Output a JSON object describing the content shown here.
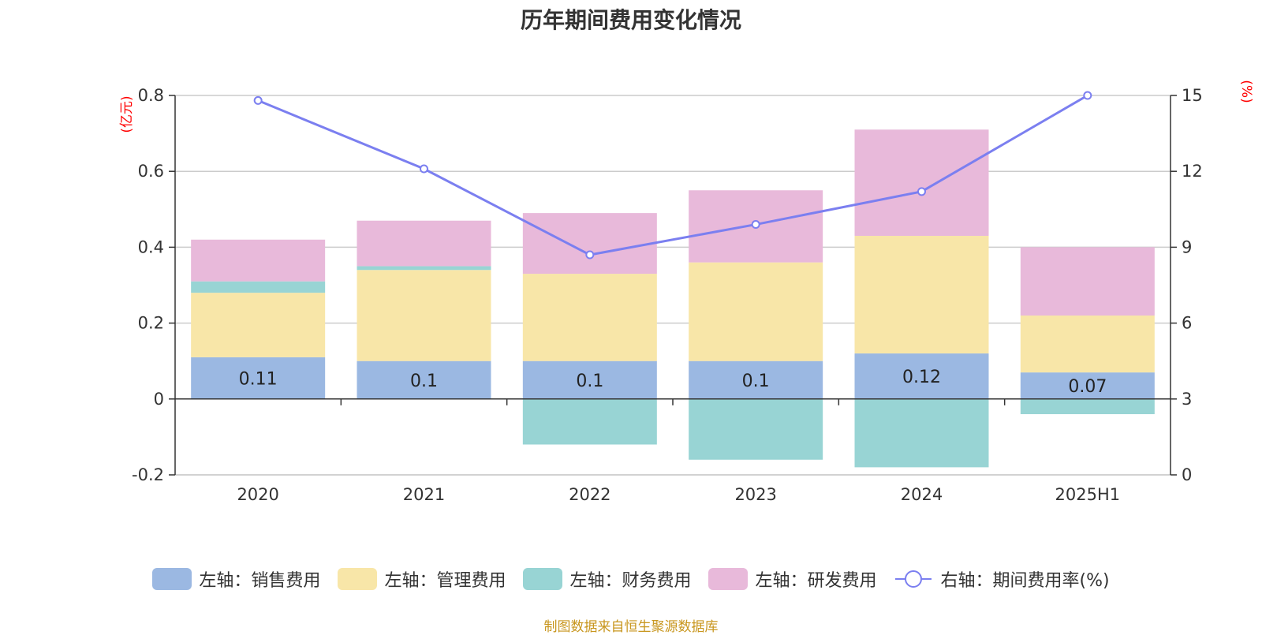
{
  "chart_data": {
    "type": "bar",
    "title": "历年期间费用变化情况",
    "categories": [
      "2020",
      "2021",
      "2022",
      "2023",
      "2024",
      "2025H1"
    ],
    "left_axis": {
      "unit": "(亿元)",
      "ylim": [
        -0.2,
        0.8
      ],
      "ticks": [
        "-0.2",
        "0",
        "0.2",
        "0.4",
        "0.6",
        "0.8"
      ]
    },
    "right_axis": {
      "unit": "(%)",
      "ylim": [
        0,
        15
      ],
      "ticks": [
        "0",
        "3",
        "6",
        "9",
        "12",
        "15"
      ]
    },
    "series": [
      {
        "name": "左轴：销售费用",
        "type": "bar",
        "axis": "left",
        "color": "#9bb8e2",
        "values": [
          0.11,
          0.1,
          0.1,
          0.1,
          0.12,
          0.07
        ],
        "labels": [
          "0.11",
          "0.1",
          "0.1",
          "0.1",
          "0.12",
          "0.07"
        ]
      },
      {
        "name": "左轴：管理费用",
        "type": "bar",
        "axis": "left",
        "color": "#f8e6a8",
        "values": [
          0.17,
          0.24,
          0.23,
          0.26,
          0.31,
          0.15
        ]
      },
      {
        "name": "左轴：财务费用",
        "type": "bar",
        "axis": "left",
        "color": "#98d4d4",
        "values": [
          0.03,
          0.01,
          -0.12,
          -0.16,
          -0.18,
          -0.04
        ]
      },
      {
        "name": "左轴：研发费用",
        "type": "bar",
        "axis": "left",
        "color": "#e8b9da",
        "values": [
          0.11,
          0.12,
          0.16,
          0.19,
          0.28,
          0.18
        ]
      },
      {
        "name": "右轴：期间费用率(%)",
        "type": "line",
        "axis": "right",
        "color": "#7b7ff0",
        "values": [
          14.8,
          12.1,
          8.7,
          9.9,
          11.2,
          15.0
        ]
      }
    ],
    "grid": true,
    "legend_position": "bottom"
  },
  "source_note": "制图数据来自恒生聚源数据库"
}
